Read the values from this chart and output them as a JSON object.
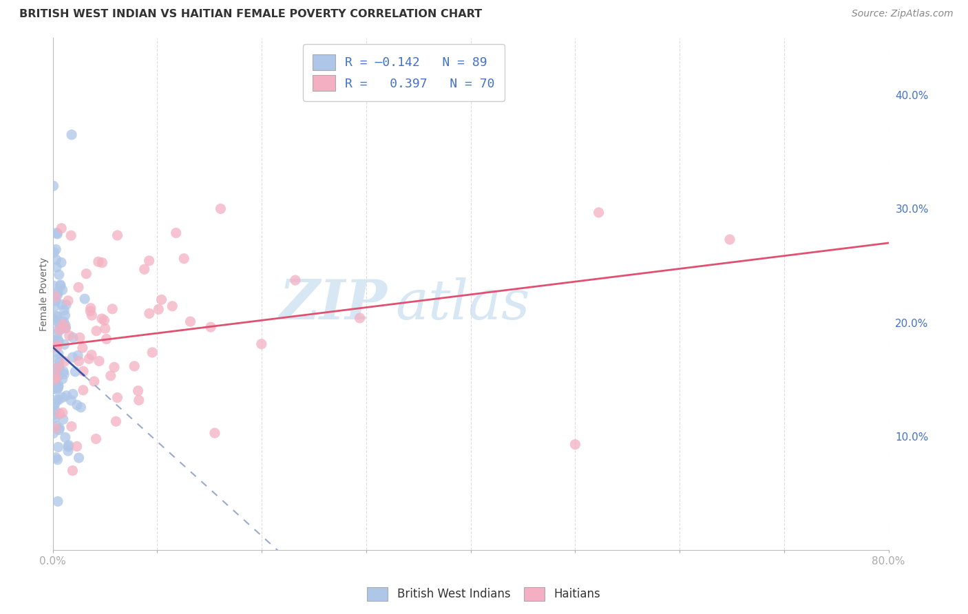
{
  "title": "BRITISH WEST INDIAN VS HAITIAN FEMALE POVERTY CORRELATION CHART",
  "source": "Source: ZipAtlas.com",
  "ylabel": "Female Poverty",
  "xlim": [
    0.0,
    0.8
  ],
  "ylim": [
    0.0,
    0.45
  ],
  "xtick_positions": [
    0.0,
    0.1,
    0.2,
    0.3,
    0.4,
    0.5,
    0.6,
    0.7,
    0.8
  ],
  "xticklabels": [
    "0.0%",
    "",
    "",
    "",
    "",
    "",
    "",
    "",
    "80.0%"
  ],
  "yticks_right": [
    0.1,
    0.2,
    0.3,
    0.4
  ],
  "ytick_labels_right": [
    "10.0%",
    "20.0%",
    "30.0%",
    "40.0%"
  ],
  "grid_color": "#dddddd",
  "bg_color": "#ffffff",
  "bwi_color": "#aec6e8",
  "haitian_color": "#f4b0c2",
  "bwi_line_color": "#3355aa",
  "bwi_line_dash_color": "#99aacc",
  "haitian_line_color": "#e05070",
  "bwi_R": -0.142,
  "bwi_N": 89,
  "haitian_R": 0.397,
  "haitian_N": 70,
  "legend_label_bwi": "British West Indians",
  "legend_label_haitian": "Haitians",
  "watermark_zip": "ZIP",
  "watermark_atlas": "atlas",
  "watermark_color": "#c8ddf0",
  "title_color": "#333333",
  "source_color": "#888888",
  "axis_label_color": "#4472C4",
  "ylabel_color": "#666666"
}
